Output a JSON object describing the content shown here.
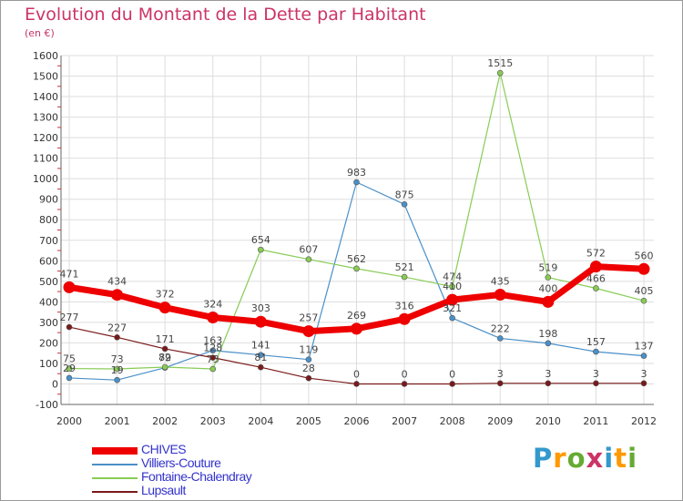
{
  "title": "Evolution du Montant de la Dette par Habitant",
  "subtitle": "(en €)",
  "logo": {
    "text": "Proxiti",
    "letter_colors": [
      "#3399cc",
      "#ff9900",
      "#66aa33",
      "#cc3366",
      "#3399cc",
      "#ff9900",
      "#66aa33"
    ]
  },
  "chart_data": {
    "type": "line",
    "x": [
      "2000",
      "2001",
      "2002",
      "2003",
      "2004",
      "2005",
      "2006",
      "2007",
      "2008",
      "2009",
      "2010",
      "2011",
      "2012"
    ],
    "ylim": [
      -100,
      1600
    ],
    "yticks": [
      "-100",
      "0",
      "100",
      "200",
      "300",
      "400",
      "500",
      "600",
      "700",
      "800",
      "900",
      "1000",
      "1100",
      "1200",
      "1300",
      "1400",
      "1500",
      "1600"
    ],
    "grid": true,
    "legend_position": "bottom-left",
    "series": [
      {
        "name": "CHIVES",
        "color": "#ee0000",
        "emphasis": "thick",
        "values": [
          471,
          434,
          372,
          324,
          303,
          257,
          269,
          316,
          410,
          435,
          400,
          572,
          560
        ],
        "labels": [
          "471",
          "434",
          "372",
          "324",
          "303",
          "257",
          "269",
          "316",
          "410",
          "435",
          "400",
          "572",
          "560"
        ]
      },
      {
        "name": "Villiers-Couture",
        "color": "#4a90c8",
        "emphasis": "thin",
        "values": [
          29,
          19,
          79,
          163,
          141,
          119,
          983,
          875,
          321,
          222,
          198,
          157,
          137
        ],
        "labels": [
          "29",
          "19",
          "79",
          "163",
          "141",
          "119",
          "983",
          "875",
          "321",
          "222",
          "198",
          "157",
          "137"
        ]
      },
      {
        "name": "Fontaine-Chalendray",
        "color": "#88cc55",
        "emphasis": "thin",
        "values": [
          75,
          73,
          82,
          73,
          654,
          607,
          562,
          521,
          474,
          1515,
          519,
          466,
          405
        ],
        "labels": [
          "75",
          "73",
          "82",
          "73",
          "654",
          "607",
          "562",
          "521",
          "474",
          "1515",
          "519",
          "466",
          "405"
        ]
      },
      {
        "name": "Lupsault",
        "color": "#7a1a1a",
        "emphasis": "thin",
        "values": [
          277,
          227,
          171,
          128,
          81,
          28,
          0,
          0,
          0,
          3,
          3,
          3,
          3
        ],
        "labels": [
          "277",
          "227",
          "171",
          "128",
          "81",
          "28",
          "0",
          "0",
          "0",
          "3",
          "3",
          "3",
          "3"
        ]
      }
    ]
  }
}
